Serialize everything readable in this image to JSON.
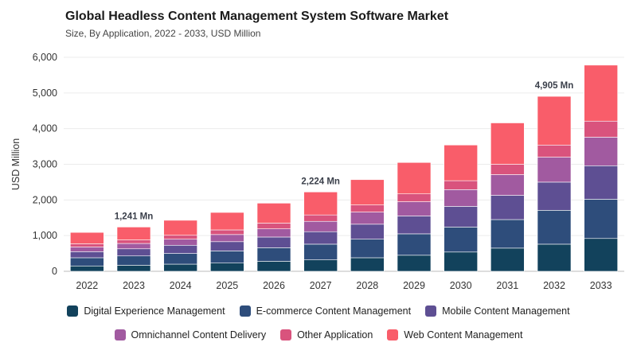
{
  "header": {
    "title": "Global Headless Content Management System Software Market",
    "subtitle": "Size, By Application, 2022 - 2033, USD Million"
  },
  "chart_data": {
    "type": "bar",
    "stacked": true,
    "ylabel": "USD Million",
    "xlabel": "",
    "ylim": [
      0,
      6000
    ],
    "yticks": [
      "0",
      "1,000",
      "2,000",
      "3,000",
      "4,000",
      "5,000",
      "6,000"
    ],
    "grid": true,
    "legend_position": "bottom",
    "categories": [
      "2022",
      "2023",
      "2024",
      "2025",
      "2026",
      "2027",
      "2028",
      "2029",
      "2030",
      "2031",
      "2032",
      "2033"
    ],
    "series": [
      {
        "name": "Digital Experience Management",
        "color": "#12425c",
        "values": [
          150,
          170,
          200,
          230,
          280,
          320,
          380,
          450,
          540,
          650,
          760,
          920
        ]
      },
      {
        "name": "E-commerce Content Management",
        "color": "#2e4d7b",
        "values": [
          230,
          260,
          300,
          340,
          380,
          440,
          520,
          600,
          700,
          800,
          950,
          1100
        ]
      },
      {
        "name": "Mobile Content Management",
        "color": "#5e4f93",
        "values": [
          170,
          200,
          230,
          260,
          300,
          350,
          420,
          500,
          580,
          680,
          790,
          940
        ]
      },
      {
        "name": "Omnichannel Content Delivery",
        "color": "#a15aa0",
        "values": [
          130,
          150,
          170,
          200,
          230,
          290,
          340,
          400,
          470,
          580,
          700,
          800
        ]
      },
      {
        "name": "Other Application",
        "color": "#d9537d",
        "values": [
          90,
          100,
          110,
          130,
          160,
          180,
          200,
          220,
          250,
          290,
          340,
          450
        ]
      },
      {
        "name": "Web Content Management",
        "color": "#f95d6a",
        "values": [
          320,
          361,
          420,
          490,
          560,
          644,
          710,
          880,
          1000,
          1160,
          1365,
          1570
        ]
      }
    ],
    "annotations": [
      {
        "category": "2023",
        "label": "1,241 Mn"
      },
      {
        "category": "2027",
        "label": "2,224 Mn"
      },
      {
        "category": "2032",
        "label": "4,905 Mn"
      }
    ]
  }
}
